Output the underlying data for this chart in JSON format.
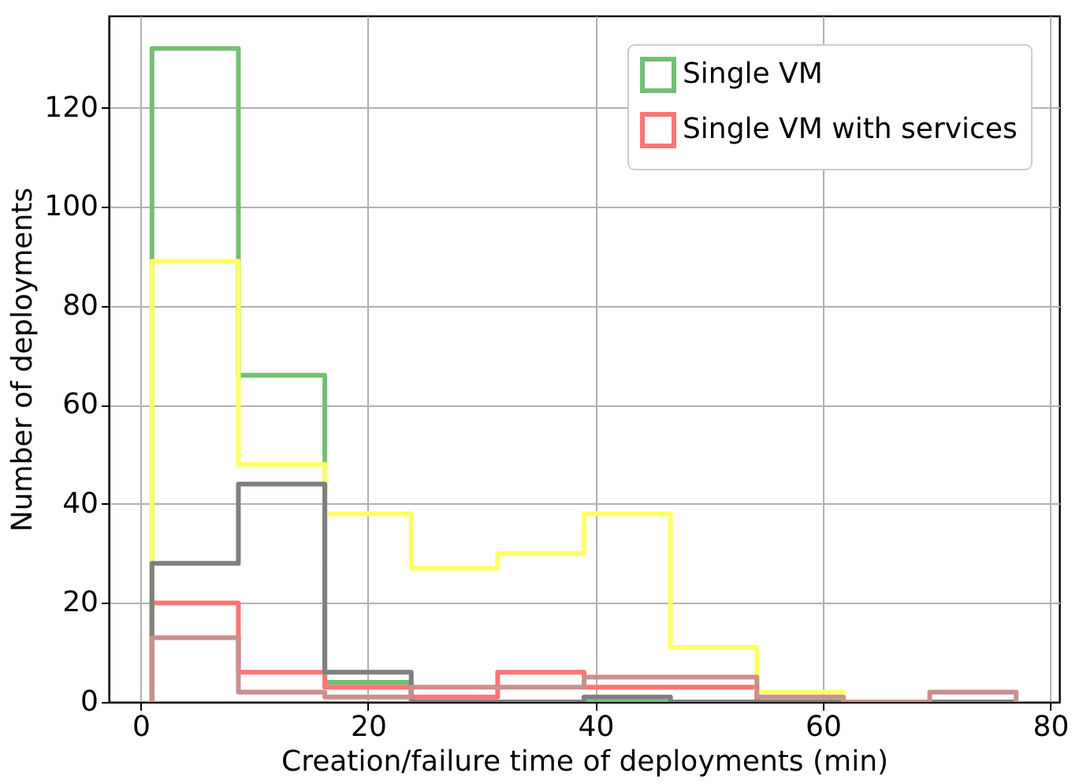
{
  "chart_data": {
    "type": "histogram",
    "xlabel": "Creation/failure time of deployments (min)",
    "ylabel": "Number of deployments",
    "bins": [
      1,
      8.6,
      16.2,
      23.8,
      31.4,
      39,
      46.6,
      54.2,
      61.8,
      69.4,
      77
    ],
    "series": [
      {
        "name": "Single VM",
        "color": "#74bf74",
        "values": [
          132,
          66,
          4,
          0,
          0,
          0,
          0,
          0,
          0,
          0
        ]
      },
      {
        "name": "Single VM with services",
        "color": "#ff7474",
        "values": [
          20,
          6,
          3,
          1,
          6,
          3,
          3,
          0,
          0,
          0
        ]
      },
      {
        "color": "#ffff66",
        "values": [
          89,
          48,
          38,
          27,
          30,
          38,
          11,
          2,
          0,
          0
        ]
      },
      {
        "color": "#7f7f7f",
        "values": [
          28,
          44,
          6,
          0,
          0,
          1,
          0,
          0,
          0,
          0
        ]
      },
      {
        "color": "#ca8f8f",
        "values": [
          13,
          2,
          1,
          3,
          3,
          5,
          5,
          1,
          0,
          2
        ]
      }
    ],
    "xlim": [
      -2.8,
      80.8
    ],
    "ylim": [
      0,
      138.6
    ],
    "xticks": [
      0,
      20,
      40,
      60,
      80
    ],
    "yticks": [
      0,
      20,
      40,
      60,
      80,
      100,
      120
    ],
    "grid": true,
    "legend": "top right"
  }
}
